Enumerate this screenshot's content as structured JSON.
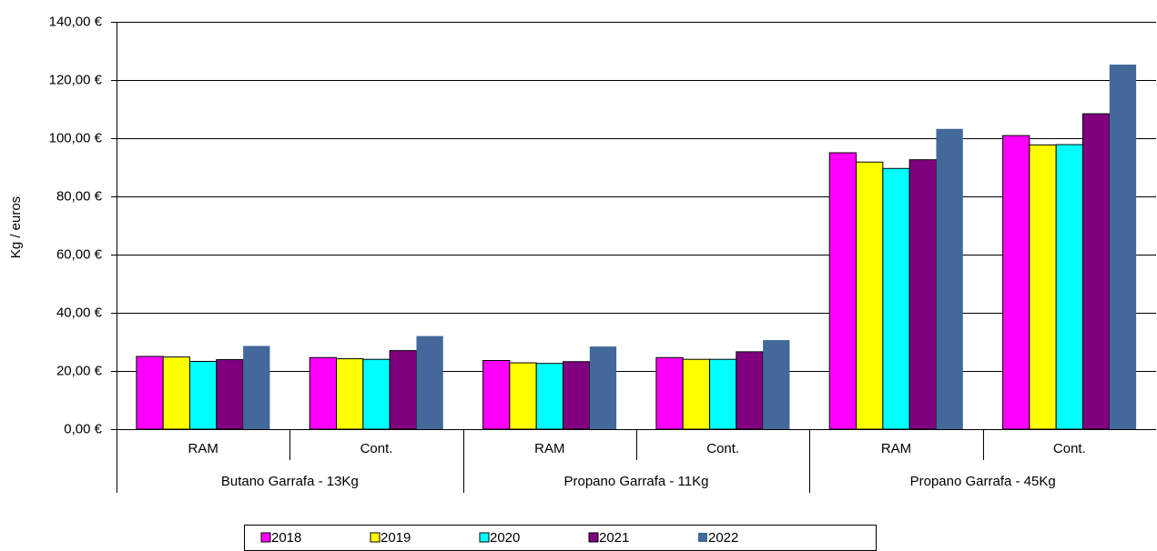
{
  "chart_data": {
    "type": "bar",
    "y_label": "Kg / euros",
    "categories": [
      "RAM",
      "Cont.",
      "RAM",
      "Cont.",
      "RAM",
      "Cont."
    ],
    "groups": [
      "Butano Garrafa - 13Kg",
      "Propano Garrafa - 11Kg",
      "Propano Garrafa - 45Kg"
    ],
    "series": [
      {
        "name": "2018",
        "color": "#ff00ff",
        "values": [
          25.0,
          24.6,
          23.6,
          24.6,
          95.0,
          100.9
        ]
      },
      {
        "name": "2019",
        "color": "#ffff00",
        "values": [
          24.8,
          24.2,
          22.8,
          24.0,
          91.8,
          97.7
        ]
      },
      {
        "name": "2020",
        "color": "#00ffff",
        "values": [
          23.3,
          24.0,
          22.6,
          24.0,
          89.6,
          97.8
        ]
      },
      {
        "name": "2021",
        "color": "#800080",
        "values": [
          23.9,
          27.0,
          23.2,
          26.6,
          92.6,
          108.4
        ]
      },
      {
        "name": "2022",
        "color": "#42699a",
        "values": [
          28.6,
          32.0,
          28.4,
          30.6,
          103.2,
          125.3
        ]
      }
    ],
    "ylim": [
      0,
      140
    ],
    "yticks": [
      {
        "value": 0,
        "label": "0,00 €"
      },
      {
        "value": 20,
        "label": "20,00 €"
      },
      {
        "value": 40,
        "label": "40,00 €"
      },
      {
        "value": 60,
        "label": "60,00 €"
      },
      {
        "value": 80,
        "label": "80,00 €"
      },
      {
        "value": 100,
        "label": "100,00 €"
      },
      {
        "value": 120,
        "label": "120,00 €"
      },
      {
        "value": 140,
        "label": "140,00 €"
      }
    ],
    "grid": true
  }
}
